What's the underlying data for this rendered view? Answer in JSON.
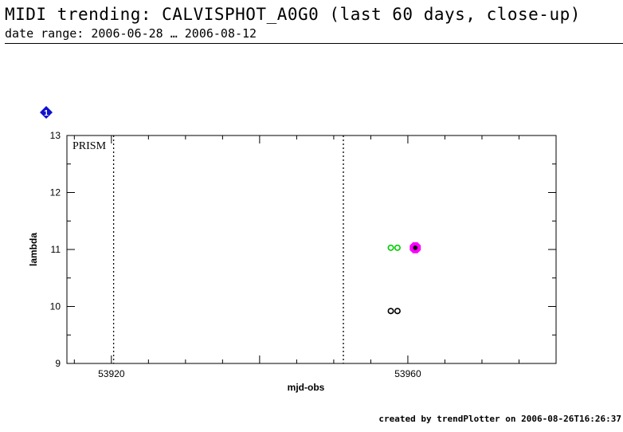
{
  "header": {
    "title": "MIDI trending: CALVISPHOT_A0G0 (last 60 days, close-up)",
    "subtitle": "date range: 2006-06-28 … 2006-08-12"
  },
  "footer": {
    "credit": "created by trendPlotter on 2006-08-26T16:26:37"
  },
  "badge": {
    "label": "1",
    "color": "#1010d0"
  },
  "chart_data": {
    "type": "scatter",
    "xlabel": "mjd-obs",
    "ylabel": "lambda",
    "xlim": [
      53914,
      53980
    ],
    "ylim": [
      9,
      13
    ],
    "x_ticks": [
      53920,
      53960
    ],
    "y_ticks": [
      9,
      10,
      11,
      12,
      13
    ],
    "grid": false,
    "annotation": "PRISM",
    "vlines": [
      53920.3,
      53951.3
    ],
    "series": [
      {
        "color": "#00cc00",
        "marker": "open-circle",
        "points": [
          [
            53957.7,
            11.03
          ],
          [
            53958.6,
            11.03
          ]
        ]
      },
      {
        "color": "#000000",
        "marker": "open-circle",
        "points": [
          [
            53957.7,
            9.92
          ],
          [
            53958.6,
            9.92
          ]
        ]
      },
      {
        "color": "#ff00ff",
        "marker": "filled-octagon",
        "points": [
          [
            53961.0,
            11.03
          ]
        ]
      },
      {
        "color": "#000000",
        "marker": "filled-dot",
        "points": [
          [
            53961.0,
            11.03
          ]
        ]
      }
    ]
  }
}
